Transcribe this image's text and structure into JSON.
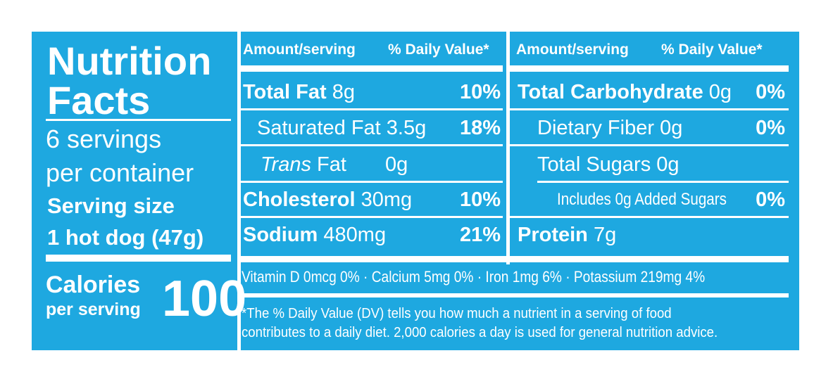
{
  "label": {
    "title_line1": "Nutrition",
    "title_line2": "Facts",
    "servings_line1": "6 servings",
    "servings_line2": "per container",
    "serving_size_label": "Serving size",
    "serving_size_value": "1 hot dog (47g)",
    "calories_label": "Calories",
    "calories_sub": "per serving",
    "calories_value": "100",
    "header_amount": "Amount/serving",
    "header_dv": "% Daily Value*",
    "left_rows": [
      {
        "name": "Total Fat",
        "amount": "8g",
        "dv": "10%"
      },
      {
        "name": "Saturated Fat",
        "amount": "3.5g",
        "dv": "18%"
      },
      {
        "name": "Trans",
        "name_suffix": "Fat",
        "amount": "0g",
        "dv": ""
      },
      {
        "name": "Cholesterol",
        "amount": "30mg",
        "dv": "10%"
      },
      {
        "name": "Sodium",
        "amount": "480mg",
        "dv": "21%"
      }
    ],
    "right_rows": [
      {
        "name": "Total Carbohydrate",
        "amount": "0g",
        "dv": "0%"
      },
      {
        "name": "Dietary Fiber",
        "amount": "0g",
        "dv": "0%"
      },
      {
        "name": "Total Sugars",
        "amount": "0g",
        "dv": ""
      },
      {
        "name": "Includes 0g Added Sugars",
        "amount": "",
        "dv": "0%"
      },
      {
        "name": "Protein",
        "amount": "7g",
        "dv": ""
      }
    ],
    "vitamins": "Vitamin D 0mcg 0% · Calcium 5mg 0% · Iron 1mg 6% · Potassium 219mg 4%",
    "footnote_line1": "*The % Daily Value (DV) tells you how much a nutrient in a serving of food",
    "footnote_line2": "contributes to a daily diet. 2,000 calories a day is used for general nutrition advice."
  },
  "colors": {
    "background": "#1ea8e0",
    "text": "#ffffff"
  }
}
